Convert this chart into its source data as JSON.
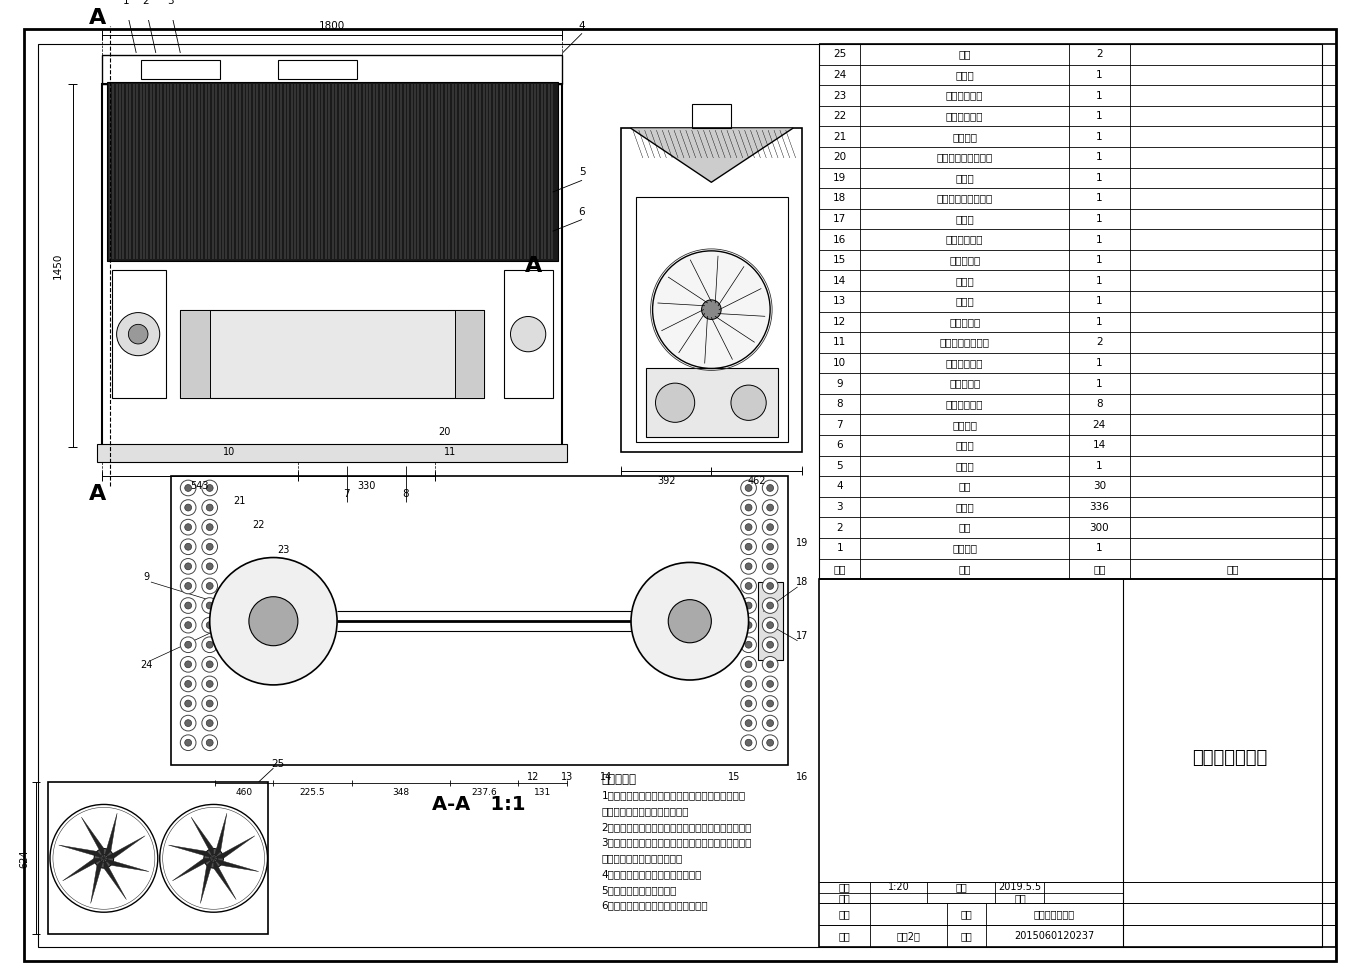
{
  "title": "热泵机组总装图",
  "background_color": "#ffffff",
  "table_rows": [
    [
      "25",
      "风机",
      "2",
      ""
    ],
    [
      "24",
      "压缩机",
      "1",
      ""
    ],
    [
      "23",
      "压缩机吸气管",
      "1",
      ""
    ],
    [
      "22",
      "压缩机排气管",
      "1",
      ""
    ],
    [
      "21",
      "油分离器",
      "1",
      ""
    ],
    [
      "20",
      "冷凝器制冷剂进口管",
      "1",
      ""
    ],
    [
      "19",
      "冷凝器",
      "1",
      ""
    ],
    [
      "18",
      "冷凝器制冷剂出口管",
      "1",
      ""
    ],
    [
      "17",
      "储液器",
      "1",
      ""
    ],
    [
      "16",
      "储液器出口管",
      "1",
      ""
    ],
    [
      "15",
      "热力膨胀阀",
      "1",
      ""
    ],
    [
      "14",
      "电磁阀",
      "1",
      ""
    ],
    [
      "13",
      "视液镜",
      "1",
      ""
    ],
    [
      "12",
      "干燥过滤器",
      "1",
      ""
    ],
    [
      "11",
      "制冷剂管路截止阀",
      "2",
      ""
    ],
    [
      "10",
      "蒸发器出气管",
      "1",
      ""
    ],
    [
      "9",
      "气液分离器",
      "1",
      ""
    ],
    [
      "8",
      "支架固定螺栓",
      "8",
      ""
    ],
    [
      "7",
      "管板螺栓",
      "24",
      ""
    ],
    [
      "6",
      "分液管",
      "14",
      ""
    ],
    [
      "5",
      "分液头",
      "1",
      ""
    ],
    [
      "4",
      "弯头",
      "30",
      ""
    ],
    [
      "3",
      "传热管",
      "336",
      ""
    ],
    [
      "2",
      "翅片",
      "300",
      ""
    ],
    [
      "1",
      "机组架子",
      "1",
      ""
    ]
  ],
  "table_headers": [
    "序号",
    "名称",
    "数量",
    "备注"
  ],
  "title_block": {
    "ratio_label": "比例",
    "ratio": "1:20",
    "date_label": "日期",
    "date": "2019.5.5",
    "review_label": "批阅",
    "grade_label": "成绩",
    "name_label": "姓名",
    "major_label": "专业",
    "major_value": "能源与动力工程",
    "class_label": "班级",
    "class_value": "能动2班",
    "id_label": "学号",
    "id_value": "2015060120237"
  },
  "tech_notes": [
    "技术要求：",
    "1、所有外购件，包括压缩机、风机电机、电控系统",
    "须经检验合格后方可进入装配。",
    "2、系统必须进行试漏检验，后必须用真空泵抽真空。",
    "3、装配时应严防水分、杂物及金属屑等进入压缩机、",
    "干燥过滤器、阀门与管路中。",
    "4、装置中压缩机不得倾斜、倒置。",
    "5、螺栓应紧固不得松动。",
    "6、所有管道均不应与其他零件摩擦。"
  ],
  "section_dims": [
    "460",
    "225.5",
    "348",
    "237.6",
    "131"
  ],
  "main_dim_top": "1800",
  "main_dim_left": "1450",
  "main_dim_b1": "543",
  "main_dim_b2": "330",
  "side_dim1": "392",
  "side_dim2": "462",
  "bottom_dim": "624"
}
